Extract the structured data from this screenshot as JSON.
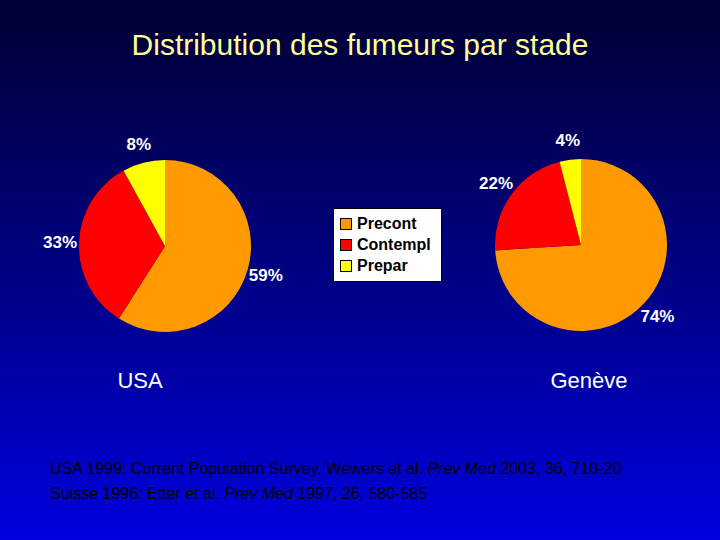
{
  "title": "Distribution des fumeurs par stade",
  "legend": "center",
  "chart_data": [
    {
      "type": "pie",
      "title": "USA",
      "categories": [
        "Precont",
        "Contempl",
        "Prepar"
      ],
      "values": [
        59,
        33,
        8
      ],
      "value_labels": [
        "59%",
        "33%",
        "8%"
      ],
      "data_labels": true,
      "colors": [
        "#ff9900",
        "#ff0000",
        "#ffff00"
      ]
    },
    {
      "type": "pie",
      "title": "Genève",
      "categories": [
        "Precont",
        "Contempl",
        "Prepar"
      ],
      "values": [
        74,
        22,
        4
      ],
      "value_labels": [
        "74%",
        "22%",
        "4%"
      ],
      "data_labels": true,
      "colors": [
        "#ff9900",
        "#ff0000",
        "#ffff00"
      ]
    }
  ],
  "sources": [
    [
      {
        "text": "USA 1999: Current Population Survey. Wewers et al. ",
        "italic": false
      },
      {
        "text": "Prev Med",
        "italic": true
      },
      {
        "text": " 2003, 36, 710-20",
        "italic": false
      }
    ],
    [
      {
        "text": "Suisse 1996: Etter et al. ",
        "italic": false
      },
      {
        "text": "Prev Med",
        "italic": true
      },
      {
        "text": " 1997, 26, 580-585",
        "italic": false
      }
    ]
  ]
}
